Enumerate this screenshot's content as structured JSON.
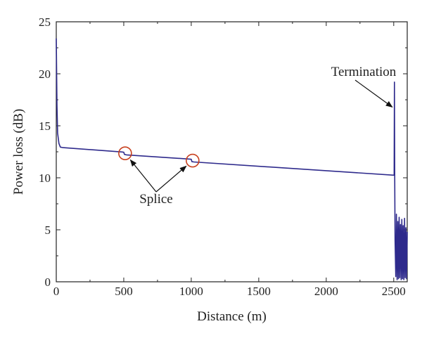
{
  "chart_data": {
    "type": "line",
    "title": "",
    "xlabel": "Distance (m)",
    "ylabel": "Power loss (dB)",
    "xlim": [
      0,
      2600
    ],
    "ylim": [
      0,
      25
    ],
    "x_ticks": [
      0,
      500,
      1000,
      1500,
      2000,
      2500
    ],
    "y_ticks": [
      0,
      5,
      10,
      15,
      20,
      25
    ],
    "x_tick_labels": [
      "0",
      "500",
      "1000",
      "1500",
      "2000",
      "2500"
    ],
    "y_tick_labels": [
      "0",
      "5",
      "10",
      "15",
      "20",
      "25"
    ],
    "grid": false,
    "series": [
      {
        "color": "#2e2a8c",
        "points": [
          [
            0,
            23.4
          ],
          [
            5,
            17.0
          ],
          [
            10,
            14.3
          ],
          [
            20,
            13.3
          ],
          [
            30,
            12.95
          ],
          [
            50,
            12.9
          ],
          [
            490,
            12.48
          ],
          [
            500,
            12.45
          ],
          [
            505,
            12.25
          ],
          [
            520,
            12.2
          ],
          [
            990,
            11.8
          ],
          [
            1000,
            11.78
          ],
          [
            1005,
            11.55
          ],
          [
            1020,
            11.52
          ],
          [
            2500,
            10.25
          ],
          [
            2503,
            10.3
          ],
          [
            2505,
            19.2
          ],
          [
            2507,
            10.2
          ],
          [
            2510,
            4.0
          ],
          [
            2515,
            0.5
          ],
          [
            2520,
            6.5
          ],
          [
            2525,
            0.2
          ],
          [
            2530,
            5.8
          ],
          [
            2535,
            0.3
          ],
          [
            2540,
            6.2
          ],
          [
            2545,
            0.4
          ],
          [
            2550,
            5.5
          ],
          [
            2555,
            0.2
          ],
          [
            2560,
            6.0
          ],
          [
            2565,
            0.3
          ],
          [
            2570,
            5.4
          ],
          [
            2575,
            0.2
          ],
          [
            2580,
            6.1
          ],
          [
            2585,
            0.4
          ],
          [
            2590,
            5.2
          ],
          [
            2595,
            0.3
          ],
          [
            2600,
            4.8
          ]
        ]
      }
    ],
    "annotations": [
      {
        "text": "Splice",
        "targets": [
          [
            510,
            12.35
          ],
          [
            1010,
            11.65
          ]
        ]
      },
      {
        "text": "Termination",
        "target": [
          2505,
          17.0
        ]
      }
    ],
    "highlight_circles": [
      [
        510,
        12.35
      ],
      [
        1010,
        11.65
      ]
    ]
  },
  "colors": {
    "line": "#2e2a8c",
    "circle": "#c8401e",
    "axis": "#222222"
  }
}
